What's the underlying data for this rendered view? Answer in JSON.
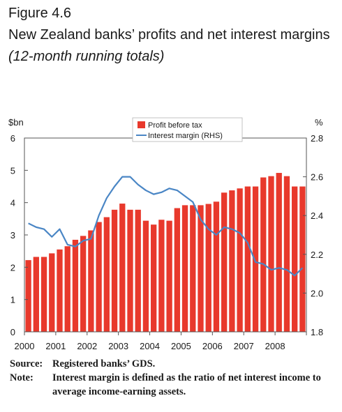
{
  "figure": {
    "label": "Figure 4.6",
    "title": "New Zealand banks’ profits and net interest margins",
    "subtitle": "(12-month running totals)"
  },
  "notes": {
    "source_key": "Source:",
    "source_text": "Registered banks’ GDS.",
    "note_key": "Note:",
    "note_text": "Interest margin is defined as the ratio of net interest income to average income-earning assets."
  },
  "colors": {
    "bar": "#e8392c",
    "line": "#4a86c5",
    "axis": "#555555",
    "text": "#1a1a1a"
  },
  "chart_data": {
    "type": "bar",
    "title": "",
    "left_axis": {
      "unit_label": "$bn",
      "ylim": [
        0,
        6
      ],
      "ticks": [
        0,
        1,
        2,
        3,
        4,
        5,
        6
      ]
    },
    "right_axis": {
      "unit_label": "%",
      "ylim": [
        1.8,
        2.8
      ],
      "ticks": [
        "1.8",
        "2.0",
        "2.2",
        "2.4",
        "2.6",
        "2.8"
      ]
    },
    "x_tick_labels": [
      "2000",
      "2001",
      "2002",
      "2003",
      "2004",
      "2005",
      "2006",
      "2007",
      "2008"
    ],
    "grid": false,
    "legend_position": "top-center",
    "series": [
      {
        "name": "Profit before tax",
        "type": "bar",
        "axis": "left",
        "values": [
          2.22,
          2.32,
          2.32,
          2.43,
          2.55,
          2.65,
          2.85,
          2.97,
          3.14,
          3.4,
          3.55,
          3.78,
          3.97,
          3.78,
          3.78,
          3.44,
          3.32,
          3.47,
          3.44,
          3.83,
          3.92,
          3.92,
          3.92,
          3.96,
          4.03,
          4.31,
          4.38,
          4.44,
          4.5,
          4.5,
          4.78,
          4.82,
          4.92,
          4.82,
          4.5,
          4.5
        ]
      },
      {
        "name": "Interest margin (RHS)",
        "type": "line",
        "axis": "right",
        "values": [
          2.36,
          2.34,
          2.33,
          2.29,
          2.33,
          2.25,
          2.24,
          2.27,
          2.28,
          2.4,
          2.49,
          2.55,
          2.6,
          2.6,
          2.56,
          2.53,
          2.51,
          2.52,
          2.54,
          2.53,
          2.5,
          2.47,
          2.38,
          2.33,
          2.3,
          2.34,
          2.33,
          2.31,
          2.26,
          2.16,
          2.15,
          2.12,
          2.13,
          2.12,
          2.09,
          2.13
        ]
      }
    ]
  }
}
